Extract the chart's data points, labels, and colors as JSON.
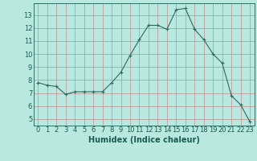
{
  "x": [
    0,
    1,
    2,
    3,
    4,
    5,
    6,
    7,
    8,
    9,
    10,
    11,
    12,
    13,
    14,
    15,
    16,
    17,
    18,
    19,
    20,
    21,
    22,
    23
  ],
  "y": [
    7.8,
    7.6,
    7.5,
    6.9,
    7.1,
    7.1,
    7.1,
    7.1,
    7.8,
    8.6,
    9.9,
    11.1,
    12.2,
    12.2,
    11.9,
    13.4,
    13.5,
    11.9,
    11.1,
    10.0,
    9.3,
    6.8,
    6.1,
    4.8
  ],
  "line_color": "#2e6b5e",
  "marker": "+",
  "marker_color": "#2e6b5e",
  "bg_color": "#b8e8e0",
  "grid_color": "#c09090",
  "xlabel": "Humidex (Indice chaleur)",
  "xlim": [
    -0.5,
    23.5
  ],
  "ylim": [
    4.5,
    13.9
  ],
  "yticks": [
    5,
    6,
    7,
    8,
    9,
    10,
    11,
    12,
    13
  ],
  "xticks": [
    0,
    1,
    2,
    3,
    4,
    5,
    6,
    7,
    8,
    9,
    10,
    11,
    12,
    13,
    14,
    15,
    16,
    17,
    18,
    19,
    20,
    21,
    22,
    23
  ],
  "font_color": "#1a5c50",
  "label_fontsize": 7,
  "tick_fontsize": 6
}
